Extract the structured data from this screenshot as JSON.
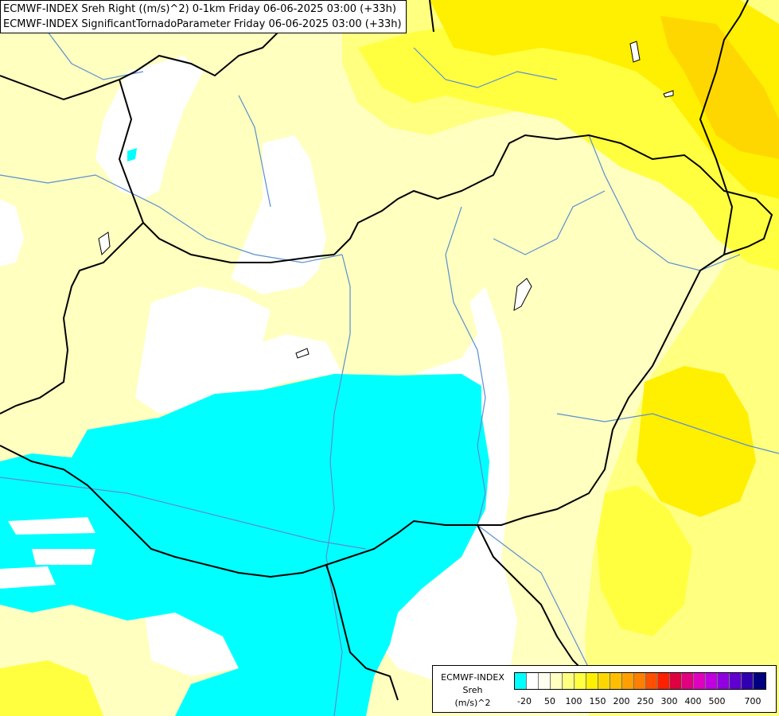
{
  "title": {
    "line1": "ECMWF-INDEX Sreh Right ((m/s)^2) 0-1km Friday 06-06-2025 03:00 (+33h)",
    "line2": "ECMWF-INDEX SignificantTornadoParameter Friday 06-06-2025 03:00 (+33h)"
  },
  "legend": {
    "model": "ECMWF-INDEX",
    "parameter": "Sreh",
    "unit": "(m/s)^2",
    "colors": [
      "#00ffff",
      "#ffffff",
      "#fffff0",
      "#ffffc0",
      "#ffff80",
      "#ffff40",
      "#ffef00",
      "#ffd700",
      "#ffbf00",
      "#ffa000",
      "#ff8000",
      "#ff5000",
      "#ff2000",
      "#e00040",
      "#e00080",
      "#e000c0",
      "#c000e0",
      "#9000e0",
      "#6000d0",
      "#3000b0",
      "#000080"
    ],
    "ticks": [
      "-20",
      "50",
      "100",
      "150",
      "200",
      "250",
      "300",
      "400",
      "500",
      "700"
    ]
  },
  "map": {
    "colors": {
      "cyan": "#00ffff",
      "white": "#ffffff",
      "pale": "#ffffc0",
      "light": "#ffff80",
      "yellow": "#ffff40",
      "gold": "#ffef00",
      "orange": "#ffd700",
      "border": "#000000",
      "river": "#5a8fd0"
    }
  }
}
